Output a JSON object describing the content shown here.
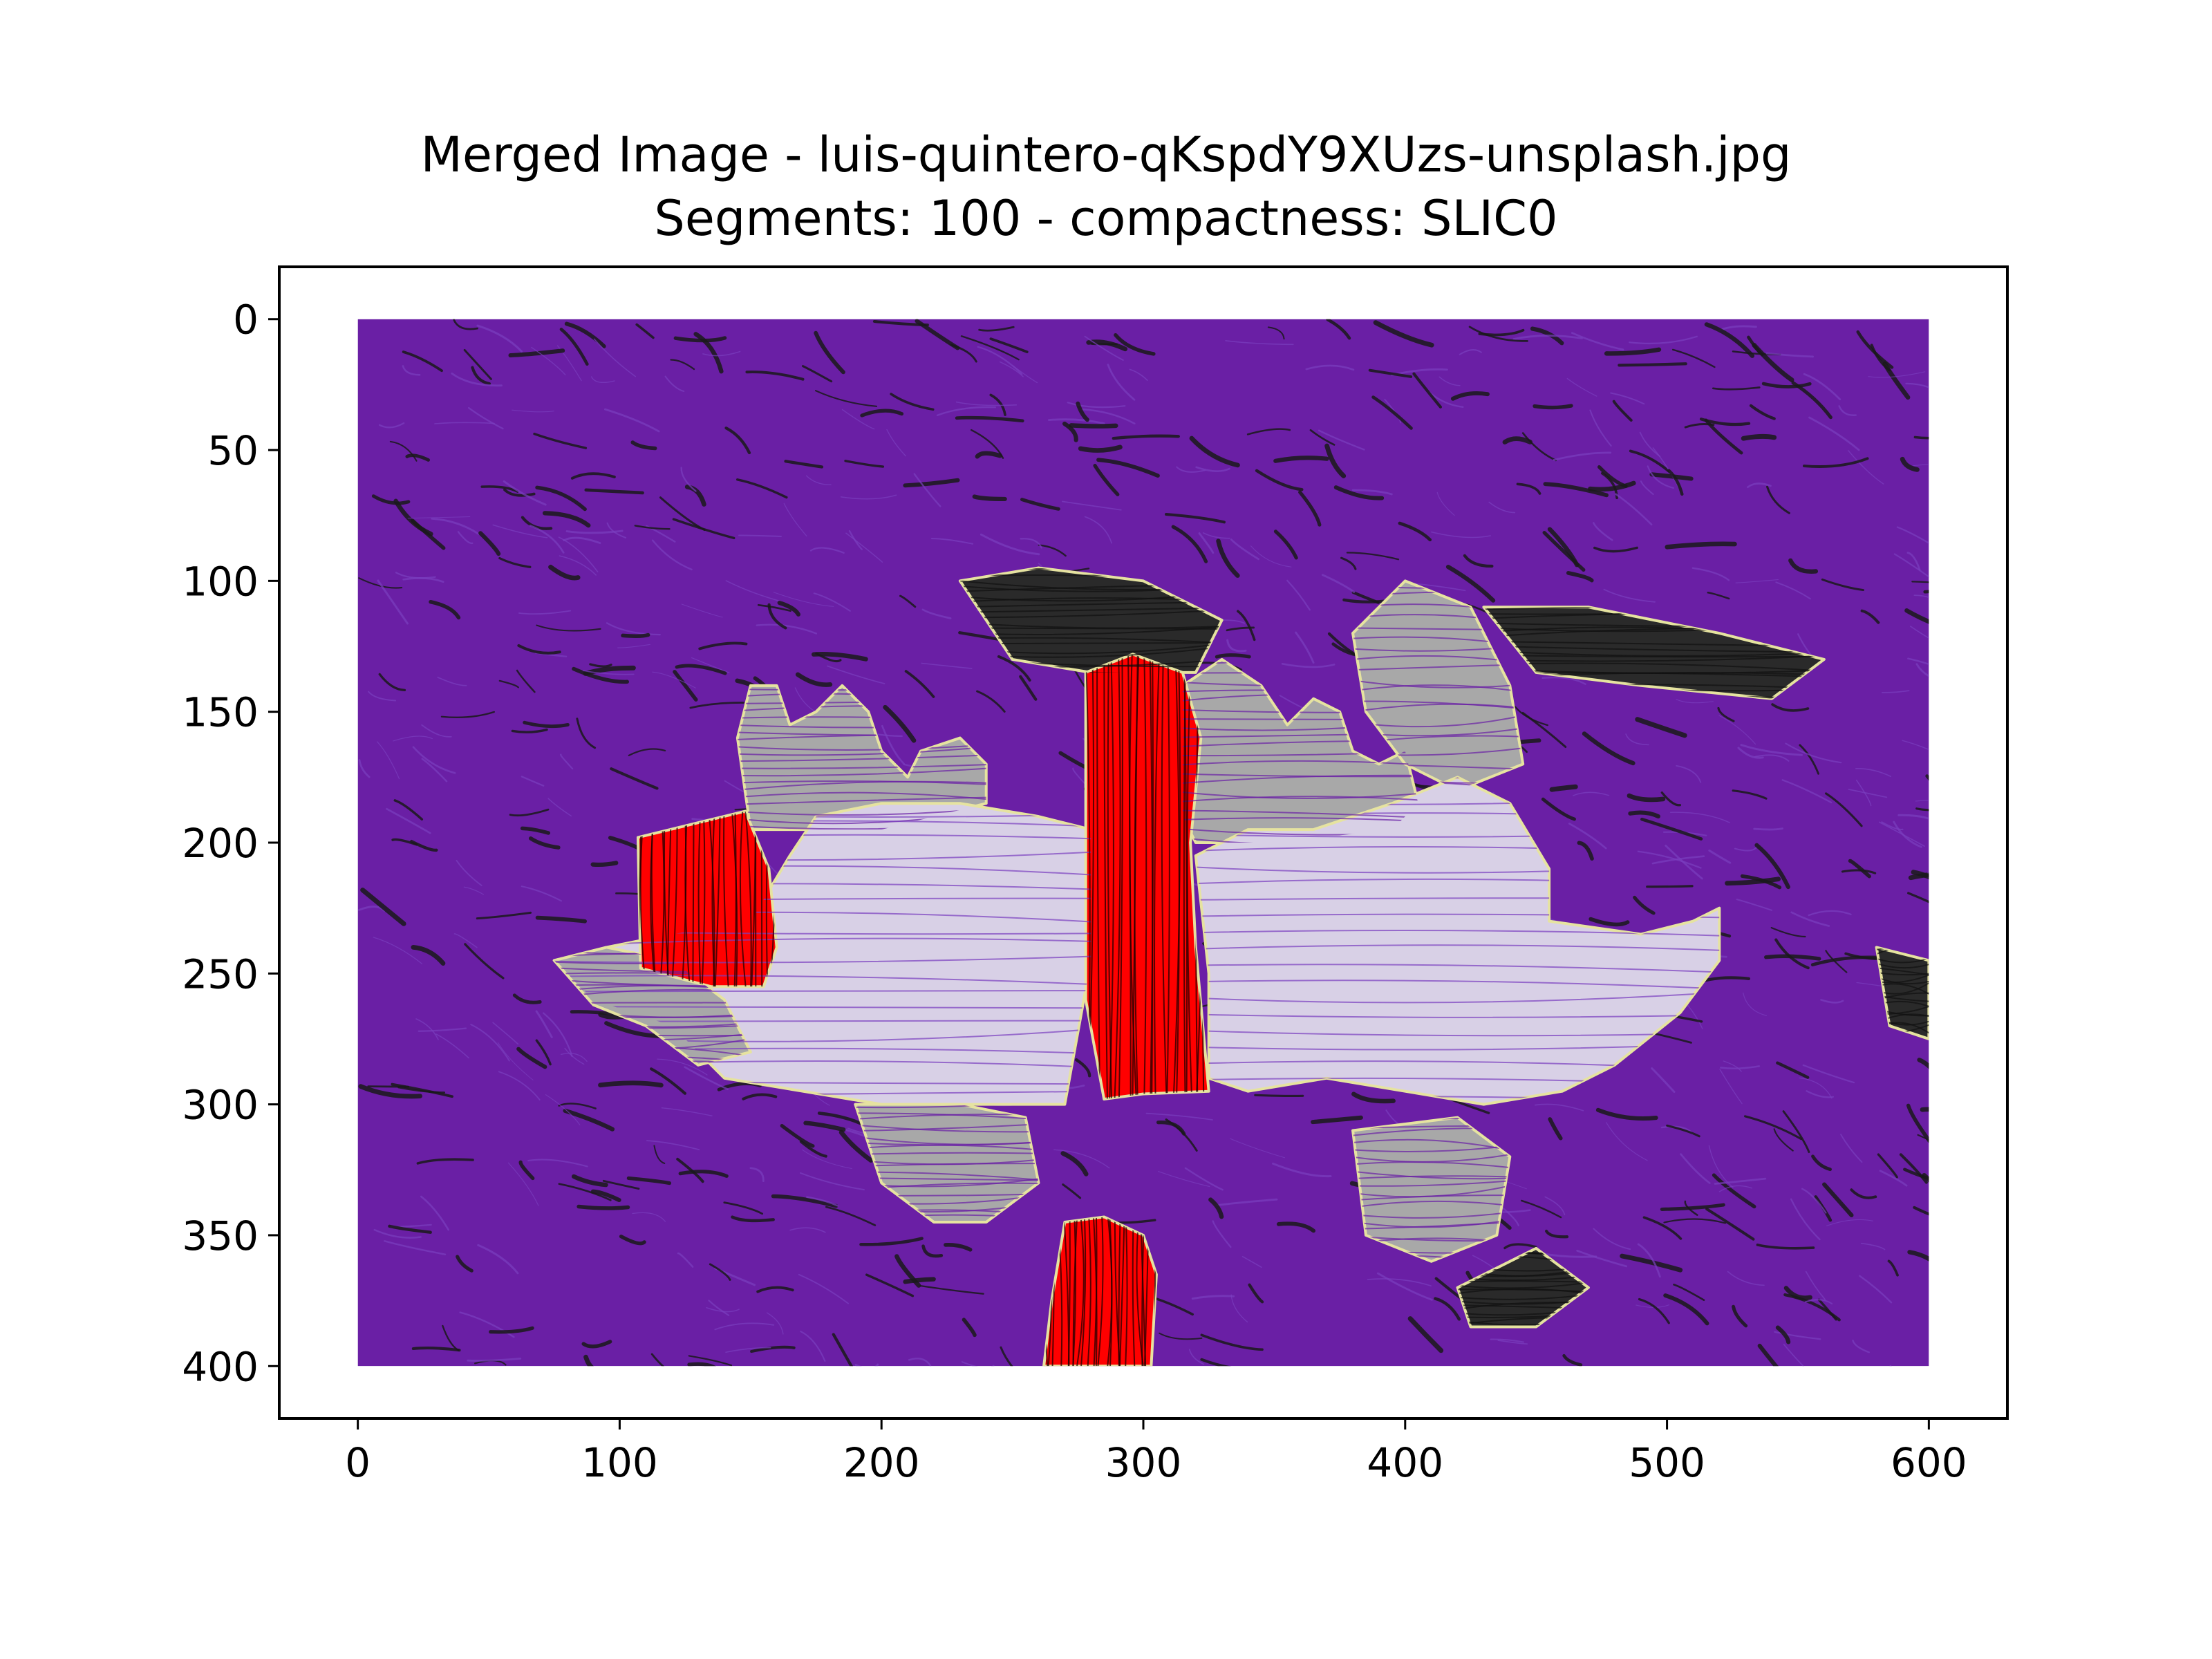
{
  "chart_data": {
    "type": "heatmap",
    "title_lines": [
      "Merged Image - luis-quintero-qKspdY9XUzs-unsplash.jpg",
      "Segments: 100 - compactness: SLIC0"
    ],
    "xlabel": "",
    "ylabel": "",
    "image_extent": {
      "x": [
        0,
        600
      ],
      "y": [
        0,
        400
      ]
    },
    "xlim": [
      -30,
      630
    ],
    "ylim": [
      420,
      -20
    ],
    "y_inverted": true,
    "xticks": [
      0,
      100,
      200,
      300,
      400,
      500,
      600
    ],
    "yticks": [
      0,
      50,
      100,
      150,
      200,
      250,
      300,
      350,
      400
    ],
    "grid": false,
    "legend": "none",
    "colors": {
      "background_region": "#6a1fa5",
      "highlight_region": "#ff0000",
      "light_region": "#d8d0e6",
      "grey_region": "#a8a8a8",
      "dark_region": "#2a2a2a",
      "streak_dark": "#1a1a1a",
      "streak_light": "#7b3fbf",
      "boundary": "#e6e3a0"
    },
    "regions": [
      {
        "kind": "grey",
        "points": [
          [
            145,
            160
          ],
          [
            150,
            140
          ],
          [
            160,
            140
          ],
          [
            165,
            155
          ],
          [
            175,
            150
          ],
          [
            185,
            140
          ],
          [
            195,
            150
          ],
          [
            200,
            165
          ],
          [
            210,
            175
          ],
          [
            215,
            165
          ],
          [
            230,
            160
          ],
          [
            240,
            170
          ],
          [
            240,
            185
          ],
          [
            200,
            195
          ],
          [
            150,
            195
          ]
        ]
      },
      {
        "kind": "grey",
        "points": [
          [
            315,
            190
          ],
          [
            315,
            140
          ],
          [
            330,
            130
          ],
          [
            345,
            140
          ],
          [
            355,
            155
          ],
          [
            365,
            145
          ],
          [
            375,
            150
          ],
          [
            380,
            165
          ],
          [
            390,
            170
          ],
          [
            400,
            165
          ],
          [
            405,
            185
          ],
          [
            395,
            195
          ],
          [
            350,
            200
          ],
          [
            320,
            200
          ]
        ]
      },
      {
        "kind": "dark",
        "points": [
          [
            230,
            100
          ],
          [
            260,
            95
          ],
          [
            300,
            100
          ],
          [
            330,
            115
          ],
          [
            320,
            135
          ],
          [
            280,
            135
          ],
          [
            250,
            130
          ]
        ]
      },
      {
        "kind": "dark",
        "points": [
          [
            430,
            110
          ],
          [
            470,
            110
          ],
          [
            520,
            120
          ],
          [
            560,
            130
          ],
          [
            540,
            145
          ],
          [
            490,
            140
          ],
          [
            450,
            135
          ]
        ]
      },
      {
        "kind": "grey",
        "points": [
          [
            380,
            120
          ],
          [
            400,
            100
          ],
          [
            425,
            110
          ],
          [
            440,
            140
          ],
          [
            445,
            170
          ],
          [
            420,
            180
          ],
          [
            400,
            170
          ],
          [
            385,
            150
          ]
        ]
      },
      {
        "kind": "light",
        "points": [
          [
            75,
            245
          ],
          [
            95,
            240
          ],
          [
            120,
            235
          ],
          [
            150,
            230
          ],
          [
            165,
            205
          ],
          [
            175,
            190
          ],
          [
            200,
            185
          ],
          [
            230,
            185
          ],
          [
            260,
            190
          ],
          [
            280,
            195
          ],
          [
            280,
            245
          ],
          [
            270,
            300
          ],
          [
            240,
            300
          ],
          [
            200,
            300
          ],
          [
            170,
            295
          ],
          [
            140,
            290
          ],
          [
            120,
            270
          ],
          [
            90,
            260
          ]
        ]
      },
      {
        "kind": "light",
        "points": [
          [
            320,
            205
          ],
          [
            340,
            195
          ],
          [
            365,
            195
          ],
          [
            395,
            185
          ],
          [
            420,
            175
          ],
          [
            440,
            185
          ],
          [
            455,
            210
          ],
          [
            455,
            230
          ],
          [
            490,
            235
          ],
          [
            510,
            230
          ],
          [
            520,
            225
          ],
          [
            520,
            245
          ],
          [
            505,
            265
          ],
          [
            480,
            285
          ],
          [
            460,
            295
          ],
          [
            430,
            300
          ],
          [
            400,
            295
          ],
          [
            370,
            290
          ],
          [
            340,
            295
          ],
          [
            325,
            290
          ],
          [
            325,
            250
          ]
        ]
      },
      {
        "kind": "grey",
        "points": [
          [
            75,
            245
          ],
          [
            95,
            240
          ],
          [
            120,
            245
          ],
          [
            140,
            260
          ],
          [
            150,
            280
          ],
          [
            130,
            285
          ],
          [
            110,
            270
          ],
          [
            90,
            262
          ]
        ]
      },
      {
        "kind": "grey",
        "points": [
          [
            190,
            300
          ],
          [
            230,
            300
          ],
          [
            255,
            305
          ],
          [
            260,
            330
          ],
          [
            240,
            345
          ],
          [
            220,
            345
          ],
          [
            200,
            330
          ]
        ]
      },
      {
        "kind": "grey",
        "points": [
          [
            380,
            310
          ],
          [
            420,
            305
          ],
          [
            440,
            320
          ],
          [
            435,
            350
          ],
          [
            410,
            360
          ],
          [
            385,
            350
          ]
        ]
      },
      {
        "kind": "dark",
        "points": [
          [
            580,
            240
          ],
          [
            600,
            245
          ],
          [
            600,
            275
          ],
          [
            585,
            270
          ]
        ]
      },
      {
        "kind": "dark",
        "points": [
          [
            420,
            370
          ],
          [
            450,
            355
          ],
          [
            470,
            370
          ],
          [
            450,
            385
          ],
          [
            425,
            385
          ]
        ]
      },
      {
        "kind": "red",
        "points": [
          [
            107,
            198
          ],
          [
            148,
            188
          ],
          [
            157,
            210
          ],
          [
            160,
            240
          ],
          [
            155,
            255
          ],
          [
            135,
            255
          ],
          [
            108,
            248
          ]
        ]
      },
      {
        "kind": "red",
        "points": [
          [
            278,
            135
          ],
          [
            296,
            128
          ],
          [
            315,
            135
          ],
          [
            322,
            160
          ],
          [
            318,
            200
          ],
          [
            320,
            240
          ],
          [
            325,
            295
          ],
          [
            300,
            296
          ],
          [
            285,
            298
          ],
          [
            278,
            260
          ],
          [
            278,
            200
          ]
        ]
      },
      {
        "kind": "red",
        "points": [
          [
            270,
            345
          ],
          [
            285,
            343
          ],
          [
            300,
            350
          ],
          [
            305,
            365
          ],
          [
            303,
            400
          ],
          [
            262,
            400
          ],
          [
            265,
            375
          ]
        ]
      }
    ]
  }
}
